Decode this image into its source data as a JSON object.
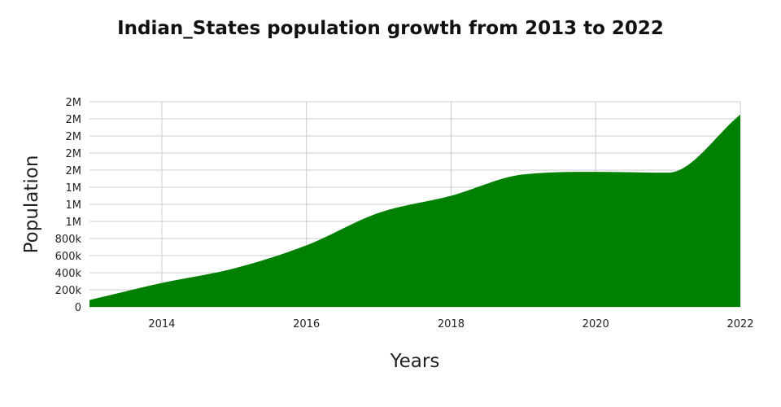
{
  "chart_data": {
    "type": "area",
    "title": "Indian_States population growth from 2013 to 2022",
    "xlabel": "Years",
    "ylabel": "Population",
    "x": [
      2013,
      2014,
      2015,
      2016,
      2017,
      2018,
      2019,
      2020,
      2021,
      2022
    ],
    "series": [
      {
        "values": [
          80000,
          280000,
          450000,
          720000,
          1100000,
          1300000,
          1550000,
          1580000,
          1570000,
          2250000
        ]
      }
    ],
    "xlim": [
      2013,
      2022
    ],
    "ylim": [
      0,
      2400000
    ],
    "x_ticks": [
      2014,
      2016,
      2018,
      2020,
      2022
    ],
    "y_ticks": [
      0,
      200000,
      400000,
      600000,
      800000,
      1000000,
      1200000,
      1400000,
      1600000,
      1800000,
      2000000,
      2200000,
      2400000
    ],
    "y_tick_labels": [
      "0",
      "200k",
      "400k",
      "600k",
      "800k",
      "1M",
      "1M",
      "1M",
      "2M",
      "2M",
      "2M",
      "2M",
      "2M"
    ],
    "grid": true,
    "fill_color": "#008000",
    "grid_color": "#cccccc"
  }
}
